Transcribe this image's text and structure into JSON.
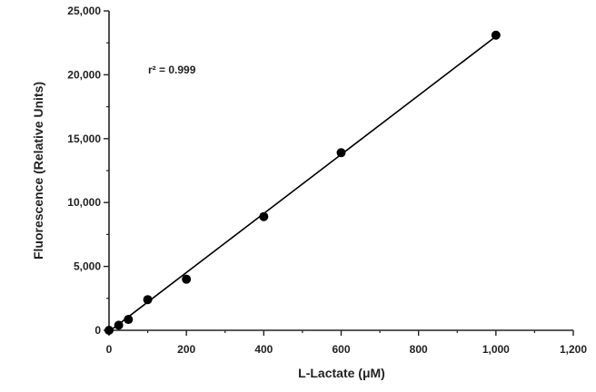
{
  "chart_data": {
    "type": "scatter",
    "title": "",
    "xlabel": "L-Lactate (μM)",
    "ylabel": "Fluorescence (Relative Units)",
    "xlim": [
      0,
      1200
    ],
    "ylim": [
      0,
      25000
    ],
    "x_ticks": [
      0,
      200,
      400,
      600,
      800,
      1000,
      1200
    ],
    "x_tick_labels": [
      "0",
      "200",
      "400",
      "600",
      "800",
      "1,000",
      "1,200"
    ],
    "y_ticks": [
      0,
      5000,
      10000,
      15000,
      20000,
      25000
    ],
    "y_tick_labels": [
      "0",
      "5,000",
      "10,000",
      "15,000",
      "20,000",
      "25,000"
    ],
    "grid": false,
    "annotation": "r² = 0.999",
    "points": [
      {
        "x": 0,
        "y": 0
      },
      {
        "x": 25,
        "y": 400
      },
      {
        "x": 50,
        "y": 850
      },
      {
        "x": 100,
        "y": 2400
      },
      {
        "x": 200,
        "y": 4000
      },
      {
        "x": 400,
        "y": 8900
      },
      {
        "x": 600,
        "y": 13900
      },
      {
        "x": 1000,
        "y": 23100
      }
    ],
    "fit_line": {
      "x": [
        0,
        1000
      ],
      "y": [
        -100,
        23000
      ]
    },
    "colors": {
      "points": "#000000",
      "line": "#000000",
      "axis": "#222222"
    }
  }
}
